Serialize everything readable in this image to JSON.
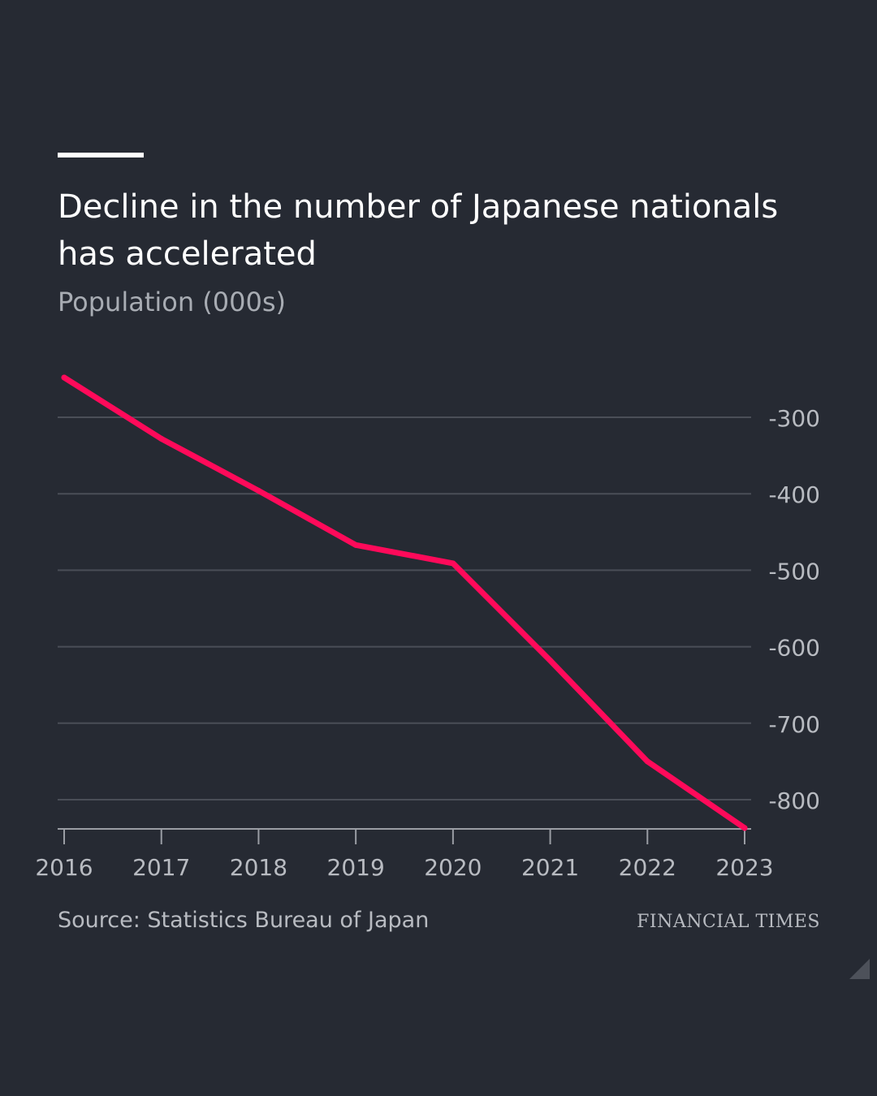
{
  "header": {
    "title": "Decline in the number of Japanese nationals has accelerated",
    "subtitle": "Population (000s)"
  },
  "footer": {
    "source": "Source: Statistics Bureau of Japan",
    "brand": "FINANCIAL TIMES"
  },
  "colors": {
    "background": "#262a33",
    "line": "#ff0a5a",
    "grid": "#4a4e57",
    "tick_label": "#b8bbc1"
  },
  "chart_data": {
    "type": "line",
    "title": "Decline in the number of Japanese nationals has accelerated",
    "ylabel": "Population (000s)",
    "x": [
      "2016",
      "2017",
      "2018",
      "2019",
      "2020",
      "2021",
      "2022",
      "2023"
    ],
    "series": [
      {
        "values": [
          -248,
          -328,
          -396,
          -467,
          -491,
          -618,
          -750,
          -837
        ]
      }
    ],
    "y_ticks": [
      -300,
      -400,
      -500,
      -600,
      -700,
      -800
    ],
    "y_tick_labels": [
      "-300",
      "-400",
      "-500",
      "-600",
      "-700",
      "-800"
    ],
    "ylim": [
      -837,
      -248
    ],
    "y_axis_side": "right",
    "grid": true,
    "legend": "none"
  }
}
